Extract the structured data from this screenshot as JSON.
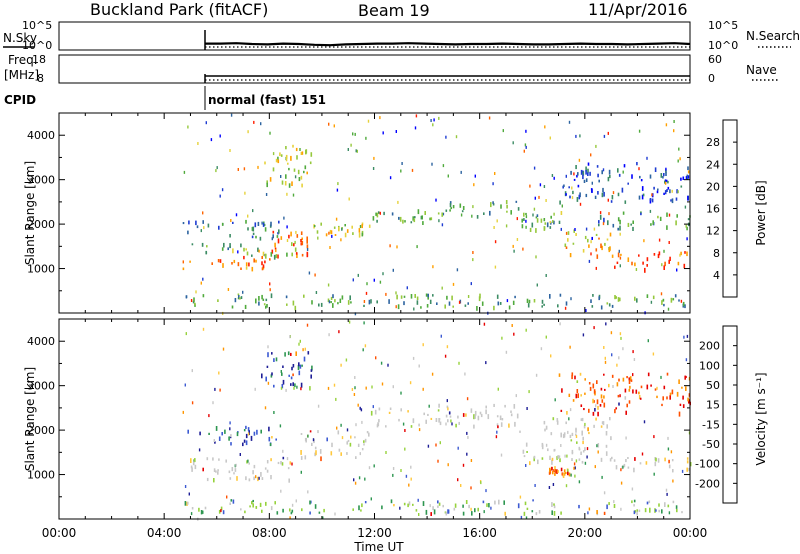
{
  "header": {
    "station": "Buckland Park (fitACF)",
    "beam": "Beam 19",
    "date": "11/Apr/2016"
  },
  "noise_panel": {
    "left_label": "N.Sky",
    "right_label": "N.Search",
    "left_ticks": [
      "10^5",
      "10^0"
    ],
    "right_ticks": [
      "10^5",
      "10^0"
    ],
    "sky_series": [
      1.6,
      1.6,
      1.7,
      1.5,
      1.4,
      1.6,
      1.5,
      1.3,
      1.2,
      1.4,
      1.5,
      1.6,
      1.6,
      1.7,
      1.6,
      1.5,
      1.4,
      1.5,
      1.5,
      1.6,
      1.5,
      1.4,
      1.4,
      1.5,
      1.6,
      1.5,
      1.5,
      1.4,
      1.5,
      1.6,
      1.7,
      1.5
    ]
  },
  "freq_panel": {
    "left_label_1": "Freq.",
    "left_label_2": "[MHz]",
    "right_label": "Nave",
    "left_ticks": [
      "18",
      "8"
    ],
    "right_ticks": [
      "60",
      "0"
    ]
  },
  "cpid": {
    "label": "CPID",
    "program": "normal (fast) 151"
  },
  "x_axis": {
    "label": "Time UT",
    "ticks": [
      "00:00",
      "04:00",
      "08:00",
      "12:00",
      "16:00",
      "20:00",
      "00:00"
    ]
  },
  "chart_data": [
    {
      "type": "heatmap",
      "parameter": "Power",
      "ylabel": "Slant Range [km]",
      "y_ticks": [
        "1000",
        "2000",
        "3000",
        "4000"
      ],
      "ylim": [
        0,
        4500
      ],
      "xlim_hours": [
        0,
        24
      ],
      "data_start_hours": 4.7,
      "colorbar": {
        "label": "Power [dB]",
        "ticks": [
          "4",
          "8",
          "12",
          "16",
          "20",
          "24",
          "28"
        ],
        "colors": [
          "#0000ff",
          "#1e3cd2",
          "#2d64a0",
          "#3c8c64",
          "#50aa3c",
          "#96c83c",
          "#e6d23c",
          "#ffa000",
          "#ff6400",
          "#ff1e00"
        ]
      },
      "bands": [
        {
          "t0": 4.7,
          "t1": 8.0,
          "r0": 1000,
          "r1": 1300,
          "level": 0.85
        },
        {
          "t0": 8.0,
          "t1": 9.6,
          "r0": 1300,
          "r1": 1850,
          "level": 0.9
        },
        {
          "t0": 4.7,
          "t1": 9.0,
          "r0": 1300,
          "r1": 1600,
          "level": 0.45
        },
        {
          "t0": 4.7,
          "t1": 8.5,
          "r0": 1700,
          "r1": 2100,
          "level": 0.3
        },
        {
          "t0": 9.6,
          "t1": 11.8,
          "r0": 1750,
          "r1": 2050,
          "level": 0.6
        },
        {
          "t0": 11.8,
          "t1": 14.5,
          "r0": 2050,
          "r1": 2350,
          "level": 0.4
        },
        {
          "t0": 14.5,
          "t1": 17.5,
          "r0": 2200,
          "r1": 2550,
          "level": 0.4
        },
        {
          "t0": 17.5,
          "t1": 19.2,
          "r0": 1900,
          "r1": 2300,
          "level": 0.45
        },
        {
          "t0": 19.2,
          "t1": 21.0,
          "r0": 1300,
          "r1": 1900,
          "level": 0.7
        },
        {
          "t0": 21.0,
          "t1": 24.0,
          "r0": 1000,
          "r1": 1400,
          "level": 0.88
        },
        {
          "t0": 20.5,
          "t1": 24.0,
          "r0": 1900,
          "r1": 2300,
          "level": 0.35
        },
        {
          "t0": 7.6,
          "t1": 9.6,
          "r0": 2900,
          "r1": 3800,
          "level": 0.6
        },
        {
          "t0": 19.0,
          "t1": 24.0,
          "r0": 2500,
          "r1": 3400,
          "level": 0.2
        },
        {
          "t0": 4.7,
          "t1": 24.0,
          "r0": 150,
          "r1": 450,
          "level": 0.4
        }
      ]
    },
    {
      "type": "heatmap",
      "parameter": "Velocity",
      "ylabel": "Slant Range [km]",
      "y_ticks": [
        "1000",
        "2000",
        "3000",
        "4000"
      ],
      "ylim": [
        0,
        4500
      ],
      "xlim_hours": [
        0,
        24
      ],
      "data_start_hours": 4.7,
      "colorbar": {
        "label": "Velocity [m s⁻¹]",
        "ticks": [
          "200",
          "100",
          "50",
          "15",
          "-15",
          "-50",
          "-100",
          "-200"
        ],
        "colors": [
          "#1e1e96",
          "#3c5ad2",
          "#2d9650",
          "#96d23c",
          "#c8c8c8",
          "#c8c8c8",
          "#ffc83c",
          "#ff9600",
          "#ff5000",
          "#e60000"
        ]
      },
      "bands": [
        {
          "t0": 4.7,
          "t1": 9.0,
          "r0": 900,
          "r1": 1400,
          "level": 0.5
        },
        {
          "t0": 9.0,
          "t1": 11.8,
          "r0": 1400,
          "r1": 2000,
          "level": 0.5
        },
        {
          "t0": 11.8,
          "t1": 17.5,
          "r0": 2100,
          "r1": 2600,
          "level": 0.5
        },
        {
          "t0": 17.5,
          "t1": 21.0,
          "r0": 1300,
          "r1": 2300,
          "level": 0.5
        },
        {
          "t0": 21.0,
          "t1": 24.0,
          "r0": 1000,
          "r1": 1400,
          "level": 0.5
        },
        {
          "t0": 4.7,
          "t1": 8.5,
          "r0": 1700,
          "r1": 2100,
          "level": 0.1
        },
        {
          "t0": 7.6,
          "t1": 9.6,
          "r0": 2900,
          "r1": 3800,
          "level": 0.15
        },
        {
          "t0": 19.0,
          "t1": 24.0,
          "r0": 2400,
          "r1": 3300,
          "level": 0.85
        },
        {
          "t0": 18.6,
          "t1": 19.4,
          "r0": 1000,
          "r1": 1200,
          "level": 0.8
        },
        {
          "t0": 4.7,
          "t1": 24.0,
          "r0": 150,
          "r1": 450,
          "level": 0.3
        }
      ]
    }
  ]
}
